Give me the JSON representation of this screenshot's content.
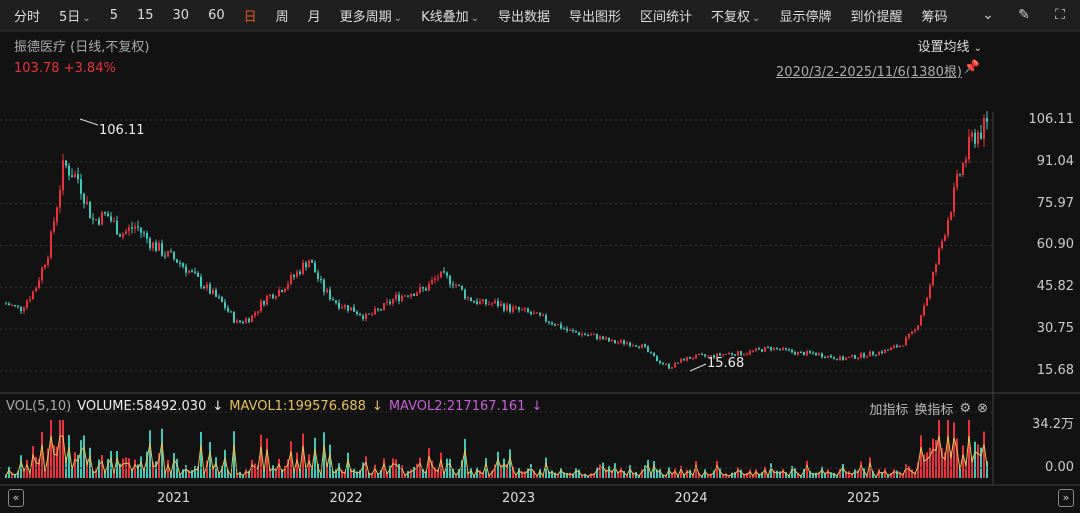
{
  "toolbar": {
    "items": [
      "分时",
      "5日",
      "5",
      "15",
      "30",
      "60",
      "日",
      "周",
      "月",
      "更多周期",
      "K线叠加",
      "导出数据",
      "导出图形",
      "区间统计",
      "不复权",
      "显示停牌",
      "到价提醒",
      "筹码"
    ],
    "dropdowns": [
      1,
      9,
      10,
      14
    ],
    "active": 6,
    "icons": [
      "circle-chevron-down-icon",
      "brush-icon",
      "fullscreen-icon"
    ]
  },
  "header": {
    "title": "振德医疗 (日线,不复权)",
    "price": "103.78",
    "change": "+3.84%",
    "ma_setting": "设置均线",
    "range": "2020/3/2-2025/11/6(1380根)"
  },
  "colors": {
    "up": "#e8323c",
    "down": "#3fc9bb",
    "accent": "#e8541e",
    "mavol1": "#e6c15a",
    "mavol2": "#c660d8"
  },
  "chart_data": {
    "type": "candlestick",
    "y_ticks": [
      "106.11",
      "91.04",
      "75.97",
      "60.90",
      "45.82",
      "30.75",
      "15.68"
    ],
    "ylim": [
      15.68,
      106.11
    ],
    "high_label": "106.11",
    "low_label": "15.68",
    "x_ticks": [
      "2021",
      "2022",
      "2023",
      "2024",
      "2025"
    ],
    "monthly_close": [
      40,
      38,
      45,
      60,
      90,
      85,
      70,
      72,
      65,
      68,
      62,
      58,
      55,
      50,
      45,
      40,
      33,
      35,
      42,
      45,
      50,
      56,
      45,
      40,
      38,
      35,
      38,
      42,
      44,
      45,
      50,
      48,
      42,
      40,
      40,
      38,
      37,
      35,
      33,
      30,
      29,
      28,
      26,
      26,
      25,
      20,
      17,
      20,
      21,
      21,
      22,
      22,
      23,
      24,
      23,
      22,
      22,
      21,
      20,
      21,
      22,
      23,
      25,
      30,
      45,
      65,
      85,
      100,
      103.78
    ],
    "volume": {
      "label": "VOL(5,10)",
      "volume": "VOLUME:58492.030",
      "mavol1": "MAVOL1:199576.688",
      "mavol2": "MAVOL2:217167.161",
      "y_ticks": [
        "34.2万",
        "0.00"
      ]
    }
  },
  "volume_panel": {
    "add_indicator": "加指标",
    "switch_indicator": "换指标"
  }
}
